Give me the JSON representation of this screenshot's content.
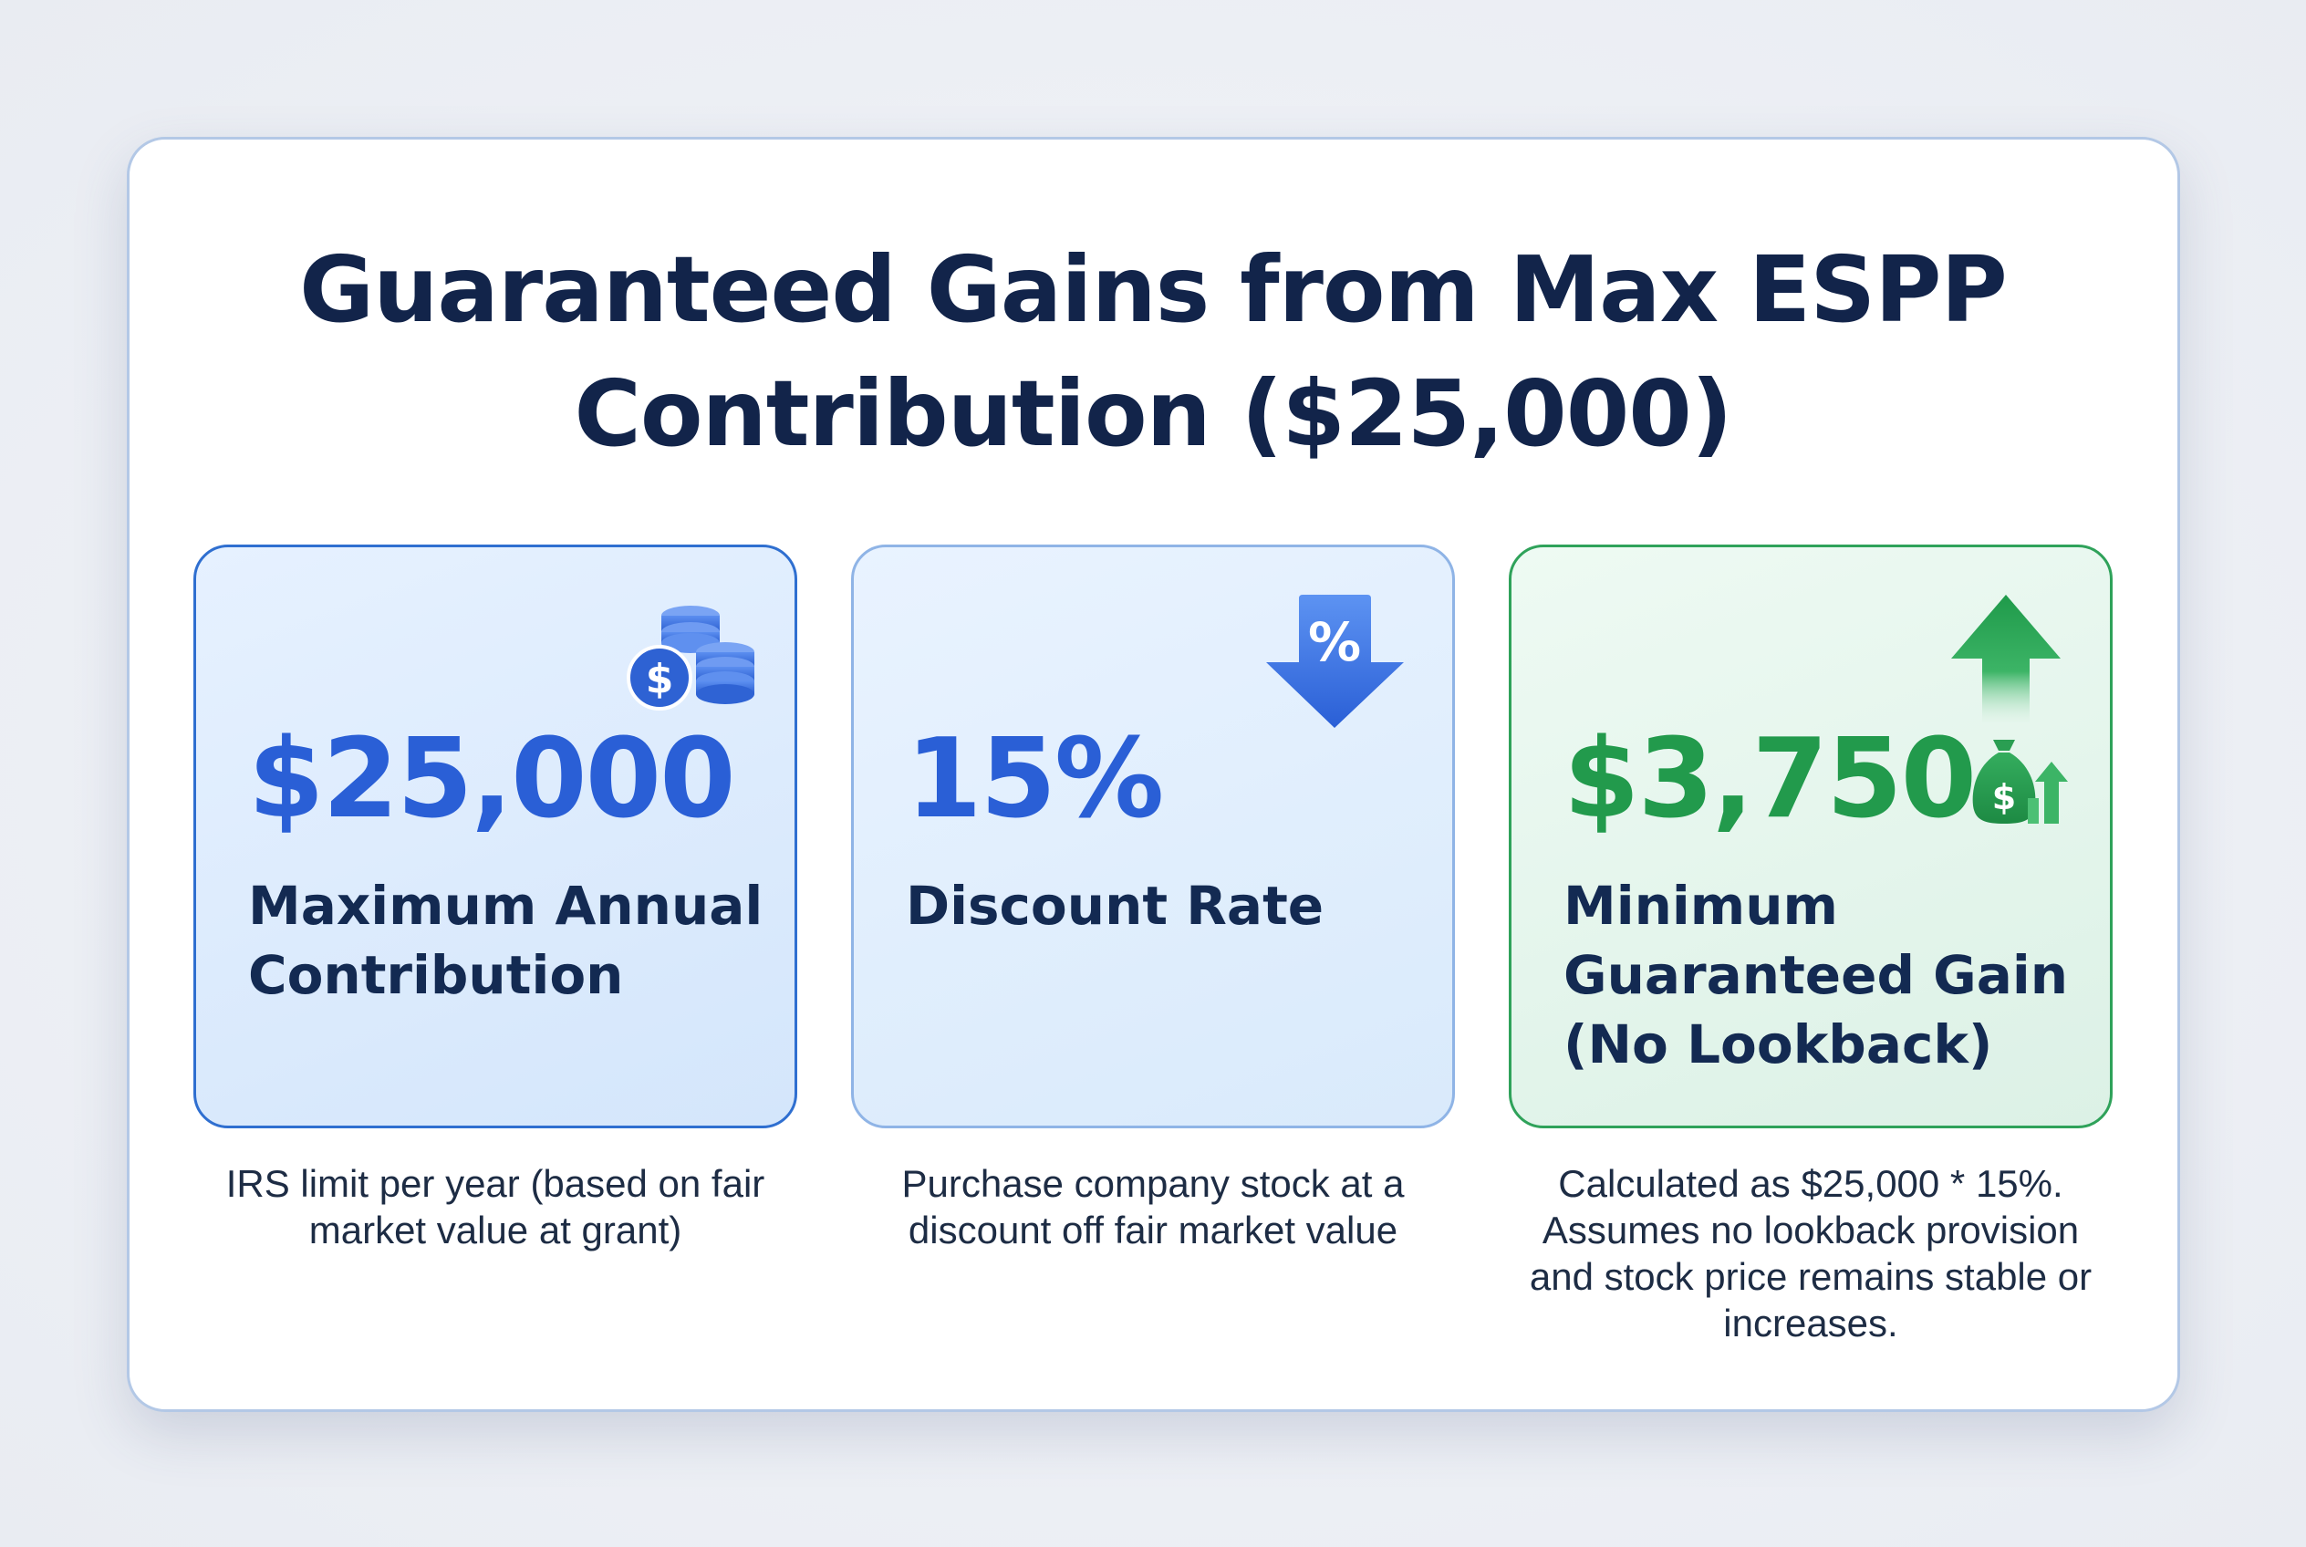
{
  "title": {
    "line1": "Guaranteed Gains from Max ESPP",
    "line2": "Contribution ($25,000)"
  },
  "cards": [
    {
      "value": "$25,000",
      "label": "Maximum Annual Contribution",
      "note": "IRS limit per year (based on fair market value at grant)",
      "icon": "coins-dollar-icon",
      "accent": "#2a5fd6"
    },
    {
      "value": "15%",
      "label": "Discount Rate",
      "note": "Purchase company stock at a discount off fair market value",
      "icon": "percent-down-arrow-icon",
      "accent": "#2a5fd6",
      "icon_text": "%"
    },
    {
      "value": "$3,750",
      "label": "Minimum Guaranteed Gain (No Lookback)",
      "note": "Calculated as $25,000 * 15%. Assumes no lookback provision and stock price remains stable or increases.",
      "icon": "up-arrow-icon",
      "secondary_icon": "money-bag-growth-icon",
      "accent": "#229a4c",
      "icon_text": "$"
    }
  ],
  "colors": {
    "title": "#12244a",
    "blue_accent": "#2a5fd6",
    "green_accent": "#229a4c"
  }
}
